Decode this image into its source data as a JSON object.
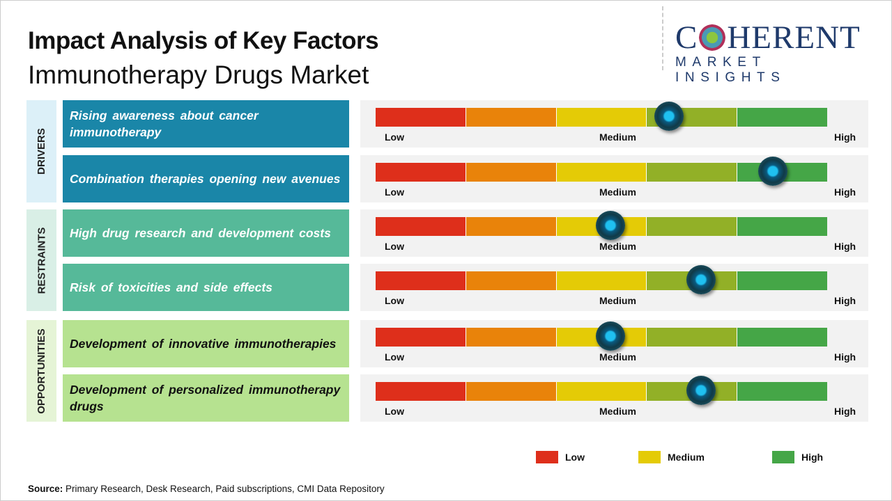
{
  "title": "Impact Analysis of Key Factors",
  "subtitle": "Immunotherapy Drugs Market",
  "logo": {
    "main": "COHERENT",
    "sub": "MARKET INSIGHTS"
  },
  "colors": {
    "low": "#de2f1b",
    "low_med": "#e9830a",
    "medium": "#e4cb06",
    "med_high": "#92b027",
    "high": "#45a647"
  },
  "scale_labels": {
    "low": "Low",
    "medium": "Medium",
    "high": "High"
  },
  "categories": [
    {
      "label": "DRIVERS",
      "color": "#1a86a8",
      "bg": "#dcf0f8",
      "text": "#fff"
    },
    {
      "label": "RESTRAINTS",
      "color": "#56b999",
      "bg": "#d9efe6",
      "text": "#fff"
    },
    {
      "label": "OPPORTUNITIES",
      "color": "#b6e290",
      "bg": "#e5f4d6",
      "text": "#111"
    }
  ],
  "chart_data": {
    "type": "gauge-bars",
    "scale": [
      "Low",
      "Medium",
      "High"
    ],
    "factors": [
      {
        "category": 0,
        "label": "Rising awareness about cancer immunotherapy",
        "impact": 0.65
      },
      {
        "category": 0,
        "label": "Combination therapies opening new avenues",
        "impact": 0.88
      },
      {
        "category": 1,
        "label": "High drug research and development costs",
        "impact": 0.52
      },
      {
        "category": 1,
        "label": "Risk of toxicities and side effects",
        "impact": 0.72
      },
      {
        "category": 2,
        "label": "Development of innovative immunotherapies",
        "impact": 0.52
      },
      {
        "category": 2,
        "label": "Development of personalized immunotherapy drugs",
        "impact": 0.72
      }
    ]
  },
  "legend": [
    {
      "label": "Low",
      "color": "#de2f1b"
    },
    {
      "label": "Medium",
      "color": "#e4cb06"
    },
    {
      "label": "High",
      "color": "#45a647"
    }
  ],
  "source": {
    "label": "Source:",
    "text": " Primary Research, Desk Research, Paid subscriptions, CMI Data Repository"
  }
}
